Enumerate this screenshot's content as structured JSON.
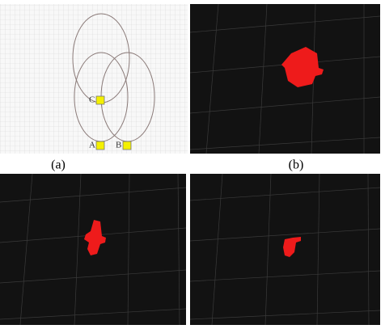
{
  "panels": [
    {
      "caption": "(a)",
      "labels": {
        "c": "C",
        "a": "A",
        "b": "B"
      }
    },
    {
      "caption": "(b)"
    }
  ]
}
